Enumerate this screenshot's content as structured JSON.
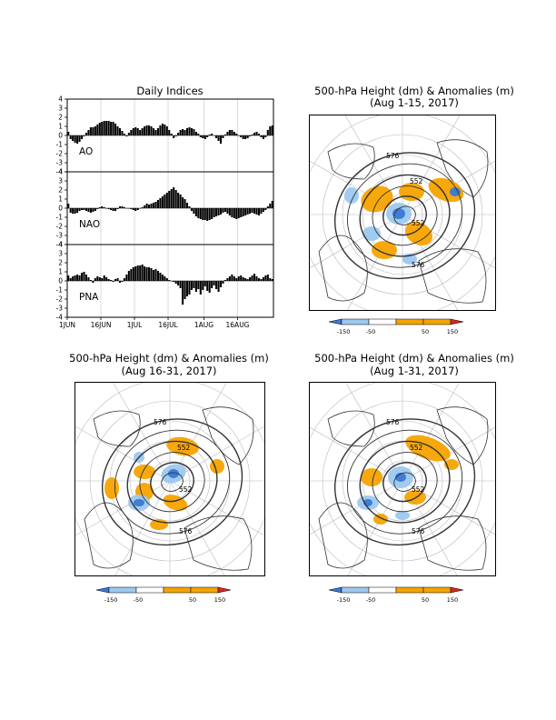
{
  "indices": {
    "title": "Daily Indices",
    "x_ticks": [
      "1JUN",
      "16JUN",
      "1JUL",
      "16JUL",
      "1AUG",
      "16AUG"
    ],
    "y_ticks": [
      "4",
      "3",
      "2",
      "1",
      "0",
      "-1",
      "-2",
      "-3",
      "-4"
    ]
  },
  "maps": [
    {
      "title_line1": "500-hPa Height (dm) & Anomalies (m)",
      "title_line2": "(Aug 1-15, 2017)"
    },
    {
      "title_line1": "500-hPa Height (dm) & Anomalies (m)",
      "title_line2": "(Aug 16-31, 2017)"
    },
    {
      "title_line1": "500-hPa Height (dm) & Anomalies (m)",
      "title_line2": "(Aug 1-31, 2017)"
    }
  ],
  "contour_labels": [
    "576",
    "552"
  ],
  "colorbar": {
    "ticks": [
      "-150",
      "-50",
      "50",
      "150"
    ],
    "colors": [
      "#3a78d6",
      "#9cc8f0",
      "#ffffff",
      "#f5a300",
      "#d8271b"
    ]
  },
  "chart_data": [
    {
      "type": "bar",
      "name": "AO",
      "ylim": [
        -4,
        4
      ],
      "x_range": [
        "1JUN",
        "31AUG"
      ],
      "x": [
        1,
        2,
        3,
        4,
        5,
        6,
        7,
        8,
        9,
        10,
        11,
        12,
        13,
        14,
        15,
        16,
        17,
        18,
        19,
        20,
        21,
        22,
        23,
        24,
        25,
        26,
        27,
        28,
        29,
        30,
        31,
        32,
        33,
        34,
        35,
        36,
        37,
        38,
        39,
        40,
        41,
        42,
        43,
        44,
        45,
        46,
        47,
        48,
        49,
        50,
        51,
        52,
        53,
        54,
        55,
        56,
        57,
        58,
        59,
        60,
        61,
        62,
        63,
        64,
        65,
        66,
        67,
        68,
        69,
        70,
        71,
        72,
        73,
        74,
        75,
        76,
        77,
        78,
        79,
        80,
        81,
        82,
        83,
        84,
        85,
        86,
        87,
        88,
        89,
        90,
        91,
        92
      ],
      "values": [
        0.4,
        -0.4,
        -0.6,
        -0.8,
        -0.9,
        -0.7,
        -0.4,
        -0.1,
        0.3,
        0.6,
        0.9,
        0.9,
        1.0,
        1.2,
        1.4,
        1.5,
        1.6,
        1.6,
        1.6,
        1.5,
        1.5,
        1.3,
        1.0,
        0.8,
        0.5,
        0.2,
        -0.1,
        0.3,
        0.6,
        0.8,
        0.9,
        0.8,
        0.6,
        0.8,
        1.0,
        1.1,
        1.1,
        1.0,
        0.8,
        0.6,
        0.8,
        1.1,
        1.3,
        1.2,
        1.0,
        0.6,
        0.2,
        -0.3,
        -0.1,
        0.3,
        0.6,
        0.7,
        0.6,
        0.8,
        0.9,
        0.8,
        0.7,
        0.4,
        0.2,
        -0.2,
        -0.3,
        -0.4,
        -0.2,
        0.1,
        0.2,
        0.0,
        -0.3,
        -0.6,
        -0.9,
        -0.3,
        0.1,
        0.4,
        0.6,
        0.6,
        0.4,
        0.2,
        0.0,
        -0.2,
        -0.4,
        -0.4,
        -0.3,
        -0.1,
        0.1,
        0.3,
        0.4,
        0.2,
        -0.2,
        -0.4,
        -0.2,
        0.6,
        1.0,
        1.1
      ]
    },
    {
      "type": "bar",
      "name": "NAO",
      "ylim": [
        -4,
        4
      ],
      "x_range": [
        "1JUN",
        "31AUG"
      ],
      "x": [
        1,
        2,
        3,
        4,
        5,
        6,
        7,
        8,
        9,
        10,
        11,
        12,
        13,
        14,
        15,
        16,
        17,
        18,
        19,
        20,
        21,
        22,
        23,
        24,
        25,
        26,
        27,
        28,
        29,
        30,
        31,
        32,
        33,
        34,
        35,
        36,
        37,
        38,
        39,
        40,
        41,
        42,
        43,
        44,
        45,
        46,
        47,
        48,
        49,
        50,
        51,
        52,
        53,
        54,
        55,
        56,
        57,
        58,
        59,
        60,
        61,
        62,
        63,
        64,
        65,
        66,
        67,
        68,
        69,
        70,
        71,
        72,
        73,
        74,
        75,
        76,
        77,
        78,
        79,
        80,
        81,
        82,
        83,
        84,
        85,
        86,
        87,
        88,
        89,
        90,
        91,
        92
      ],
      "values": [
        0.5,
        -0.5,
        -0.6,
        -0.6,
        -0.5,
        -0.3,
        -0.2,
        -0.2,
        -0.3,
        -0.4,
        -0.5,
        -0.4,
        -0.3,
        -0.1,
        0.1,
        0.2,
        0.1,
        0.0,
        -0.1,
        -0.2,
        -0.3,
        -0.3,
        -0.1,
        0.2,
        0.2,
        0.1,
        0.0,
        0.0,
        -0.1,
        -0.2,
        -0.3,
        -0.2,
        0.0,
        0.1,
        0.3,
        0.5,
        0.4,
        0.5,
        0.6,
        0.7,
        0.9,
        1.1,
        1.3,
        1.5,
        1.7,
        1.9,
        2.1,
        2.3,
        2.0,
        1.7,
        1.5,
        1.2,
        1.0,
        0.6,
        0.2,
        -0.3,
        -0.6,
        -0.9,
        -1.1,
        -1.2,
        -1.3,
        -1.3,
        -1.4,
        -1.3,
        -1.2,
        -1.0,
        -0.9,
        -0.8,
        -0.7,
        -0.5,
        -0.4,
        -0.6,
        -0.8,
        -1.0,
        -1.1,
        -1.2,
        -1.1,
        -1.0,
        -0.9,
        -0.8,
        -0.7,
        -0.6,
        -0.5,
        -0.6,
        -0.7,
        -0.8,
        -0.6,
        -0.4,
        -0.2,
        0.2,
        0.5,
        0.8
      ]
    },
    {
      "type": "bar",
      "name": "PNA",
      "ylim": [
        -4,
        4
      ],
      "x_range": [
        "1JUN",
        "31AUG"
      ],
      "x": [
        1,
        2,
        3,
        4,
        5,
        6,
        7,
        8,
        9,
        10,
        11,
        12,
        13,
        14,
        15,
        16,
        17,
        18,
        19,
        20,
        21,
        22,
        23,
        24,
        25,
        26,
        27,
        28,
        29,
        30,
        31,
        32,
        33,
        34,
        35,
        36,
        37,
        38,
        39,
        40,
        41,
        42,
        43,
        44,
        45,
        46,
        47,
        48,
        49,
        50,
        51,
        52,
        53,
        54,
        55,
        56,
        57,
        58,
        59,
        60,
        61,
        62,
        63,
        64,
        65,
        66,
        67,
        68,
        69,
        70,
        71,
        72,
        73,
        74,
        75,
        76,
        77,
        78,
        79,
        80,
        81,
        82,
        83,
        84,
        85,
        86,
        87,
        88,
        89,
        90,
        91,
        92
      ],
      "values": [
        0.6,
        0.3,
        0.5,
        0.6,
        0.7,
        0.6,
        0.9,
        1.0,
        0.7,
        0.4,
        0.1,
        -0.2,
        0.3,
        0.5,
        0.4,
        0.3,
        0.6,
        0.4,
        0.2,
        0.1,
        -0.1,
        0.2,
        0.3,
        -0.2,
        -0.1,
        0.3,
        0.7,
        1.1,
        1.3,
        1.5,
        1.6,
        1.7,
        1.7,
        1.8,
        1.6,
        1.5,
        1.5,
        1.4,
        1.2,
        1.3,
        1.1,
        0.9,
        0.7,
        0.5,
        0.3,
        0.1,
        0.0,
        -0.1,
        -0.3,
        -0.5,
        -0.8,
        -2.6,
        -2.0,
        -1.7,
        -1.5,
        -1.0,
        -0.8,
        -1.2,
        -0.9,
        -1.5,
        -1.0,
        -0.6,
        -1.1,
        -1.3,
        -0.8,
        -0.5,
        -0.9,
        -1.2,
        -0.7,
        -0.3,
        0.1,
        0.3,
        0.5,
        0.7,
        0.5,
        0.3,
        0.5,
        0.6,
        0.4,
        0.3,
        0.2,
        0.4,
        0.6,
        0.8,
        0.5,
        0.3,
        0.2,
        0.4,
        0.6,
        0.7,
        0.3,
        0.2
      ]
    }
  ]
}
